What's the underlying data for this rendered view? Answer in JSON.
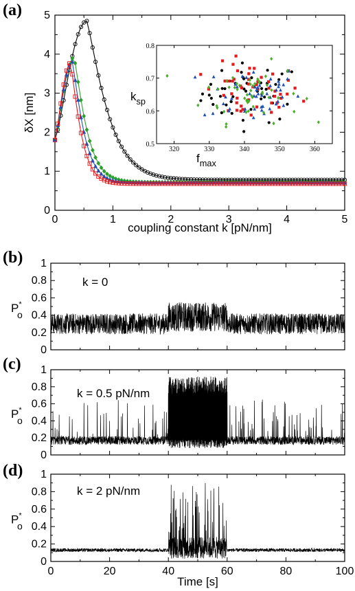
{
  "chart_data": [
    {
      "panel": "(a)",
      "type": "line",
      "xlabel": "coupling constant k [pN/nm]",
      "ylabel": "δX [nm]",
      "xlim": [
        0,
        5
      ],
      "ylim": [
        0,
        5
      ],
      "xticks": [
        "0",
        "1",
        "2",
        "3",
        "4",
        "5"
      ],
      "yticks": [
        "0",
        "1",
        "2",
        "3",
        "4",
        "5"
      ],
      "series": [
        {
          "color": "#000000",
          "marker": "circle",
          "peak": [
            0.55,
            4.85
          ],
          "y0": 1.8,
          "tail": 0.78
        },
        {
          "color": "#2ca02c",
          "marker": "diamond",
          "peak": [
            0.33,
            3.92
          ],
          "y0": 1.8,
          "tail": 0.72
        },
        {
          "color": "#1f4fb5",
          "marker": "triangle",
          "peak": [
            0.3,
            3.8
          ],
          "y0": 1.8,
          "tail": 0.7
        },
        {
          "color": "#e41a1c",
          "marker": "square",
          "peak": [
            0.27,
            3.78
          ],
          "y0": 1.8,
          "tail": 0.68
        }
      ],
      "inset": {
        "type": "scatter",
        "xlabel": "f",
        "xlabel_sub": "max",
        "ylabel": "k",
        "ylabel_sub": "sp",
        "xlim": [
          315,
          365
        ],
        "ylim": [
          0.5,
          0.8
        ],
        "xticks": [
          "320",
          "330",
          "340",
          "350",
          "360"
        ],
        "yticks": [
          "0.5",
          "0.6",
          "0.7",
          "0.8"
        ],
        "center": [
          342,
          0.655
        ],
        "spread": [
          7,
          0.045
        ],
        "n_per_series": 50
      }
    },
    {
      "panel": "(b)",
      "type": "line",
      "ylabel": "P",
      "ylabel_sup": "*",
      "ylabel_sub": "o",
      "annotation": "k = 0",
      "ylim": [
        0,
        1
      ],
      "yticks": [
        "0",
        "0.2",
        "0.4",
        "0.6",
        "0.8",
        "1"
      ],
      "xlim": [
        0,
        100
      ],
      "base": 0.3,
      "noise": 0.12,
      "stim_window": [
        40,
        60
      ],
      "stim_mean": 0.38,
      "stim_noise": 0.17
    },
    {
      "panel": "(c)",
      "type": "line",
      "ylabel": "P",
      "ylabel_sup": "*",
      "ylabel_sub": "o",
      "annotation": "k = 0.5 pN/nm",
      "ylim": [
        0,
        1
      ],
      "yticks": [
        "0",
        "0.2",
        "0.4",
        "0.6",
        "0.8",
        "1"
      ],
      "xlim": [
        0,
        100
      ],
      "base": 0.17,
      "noise": 0.05,
      "spike_max": 0.65,
      "stim_window": [
        40,
        60
      ],
      "stim_range": [
        0.08,
        0.92
      ]
    },
    {
      "panel": "(d)",
      "type": "line",
      "ylabel": "P",
      "ylabel_sup": "*",
      "ylabel_sub": "o",
      "annotation": "k = 2 pN/nm",
      "ylim": [
        0,
        1
      ],
      "yticks": [
        "0",
        "0.2",
        "0.4",
        "0.6",
        "0.8",
        "1"
      ],
      "xlim": [
        0,
        100
      ],
      "xlabel": "Time [s]",
      "xticks": [
        "0",
        "20",
        "40",
        "60",
        "80",
        "100"
      ],
      "base": 0.13,
      "noise": 0.02,
      "stim_window": [
        40,
        60
      ],
      "stim_range": [
        0.03,
        0.93
      ]
    }
  ]
}
